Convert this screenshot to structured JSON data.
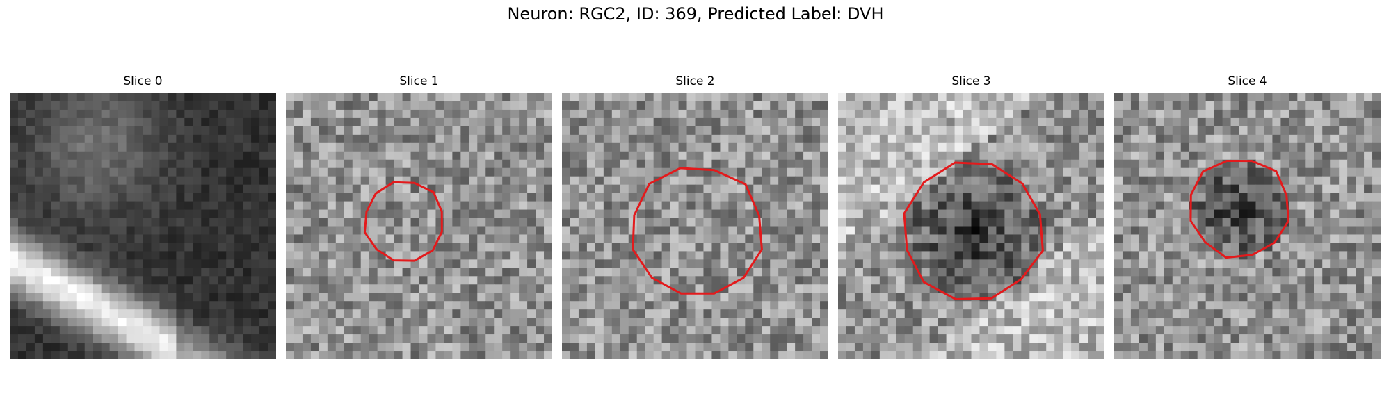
{
  "figure": {
    "title": "Neuron: RGC2, ID: 369, Predicted Label: DVH",
    "contour_color": "#e31a1c",
    "colormap": "grayscale",
    "panels": [
      {
        "title": "Slice 0",
        "seed": 11,
        "bright_band": true,
        "dark_blob": false,
        "contour": null
      },
      {
        "title": "Slice 1",
        "seed": 23,
        "bright_band": false,
        "dark_blob": false,
        "contour": "small"
      },
      {
        "title": "Slice 2",
        "seed": 37,
        "bright_band": false,
        "dark_blob": false,
        "contour": "large"
      },
      {
        "title": "Slice 3",
        "seed": 41,
        "bright_band": true,
        "dark_blob": true,
        "contour": "large2"
      },
      {
        "title": "Slice 4",
        "seed": 53,
        "bright_band": false,
        "dark_blob": true,
        "contour": "small2"
      }
    ]
  }
}
